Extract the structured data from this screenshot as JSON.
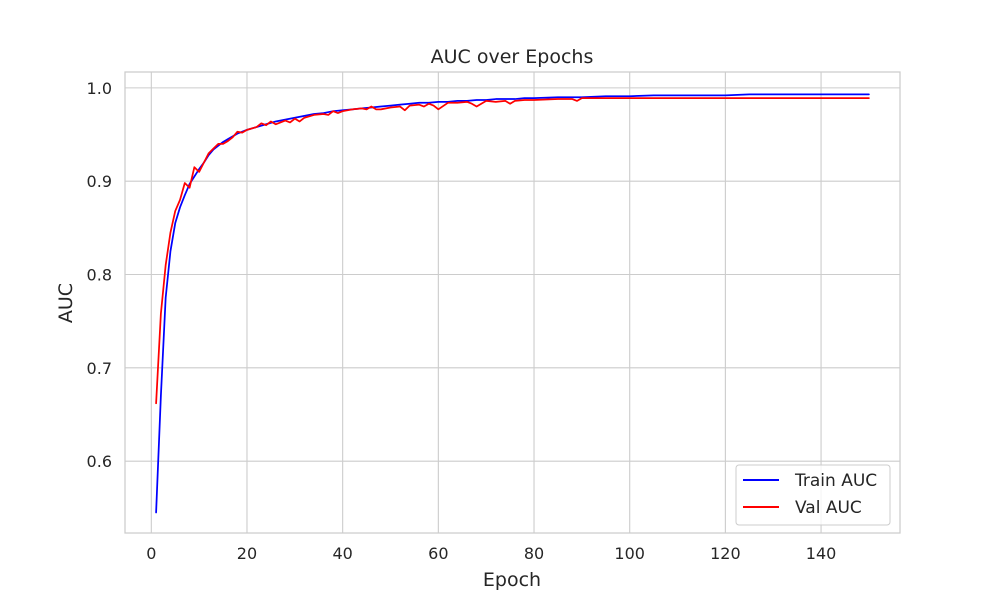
{
  "chart_data": {
    "type": "line",
    "title": "AUC over Epochs",
    "xlabel": "Epoch",
    "ylabel": "AUC",
    "xlim": [
      -5.5,
      156.5
    ],
    "ylim": [
      0.523,
      1.017
    ],
    "xticks": [
      0,
      20,
      40,
      60,
      80,
      100,
      120,
      140
    ],
    "yticks": [
      0.6,
      0.7,
      0.8,
      0.9,
      1.0
    ],
    "ytick_labels": [
      "0.6",
      "0.7",
      "0.8",
      "0.9",
      "1.0"
    ],
    "grid": true,
    "legend_position": "bottom-right",
    "series": [
      {
        "name": "Train AUC",
        "color": "#0000ff",
        "x": [
          1,
          2,
          3,
          4,
          5,
          6,
          7,
          8,
          9,
          10,
          11,
          12,
          13,
          14,
          15,
          16,
          17,
          18,
          19,
          20,
          22,
          24,
          26,
          28,
          30,
          32,
          34,
          36,
          38,
          40,
          42,
          44,
          46,
          48,
          50,
          52,
          54,
          56,
          58,
          60,
          62,
          64,
          66,
          68,
          70,
          72,
          74,
          76,
          78,
          80,
          85,
          90,
          95,
          100,
          105,
          110,
          115,
          120,
          125,
          130,
          135,
          140,
          145,
          150
        ],
        "y": [
          0.545,
          0.67,
          0.775,
          0.825,
          0.855,
          0.872,
          0.885,
          0.897,
          0.905,
          0.913,
          0.92,
          0.928,
          0.934,
          0.938,
          0.942,
          0.945,
          0.948,
          0.951,
          0.953,
          0.955,
          0.958,
          0.961,
          0.964,
          0.966,
          0.968,
          0.97,
          0.972,
          0.973,
          0.975,
          0.976,
          0.977,
          0.978,
          0.979,
          0.98,
          0.981,
          0.982,
          0.983,
          0.984,
          0.984,
          0.985,
          0.985,
          0.986,
          0.986,
          0.987,
          0.987,
          0.988,
          0.988,
          0.988,
          0.989,
          0.989,
          0.99,
          0.99,
          0.991,
          0.991,
          0.992,
          0.992,
          0.992,
          0.992,
          0.993,
          0.993,
          0.993,
          0.993,
          0.993,
          0.993
        ]
      },
      {
        "name": "Val AUC",
        "color": "#ff0000",
        "x": [
          1,
          2,
          3,
          4,
          5,
          6,
          7,
          8,
          9,
          10,
          11,
          12,
          13,
          14,
          15,
          16,
          17,
          18,
          19,
          20,
          22,
          23,
          24,
          25,
          26,
          28,
          29,
          30,
          31,
          32,
          34,
          36,
          37,
          38,
          39,
          40,
          42,
          44,
          45,
          46,
          47,
          48,
          50,
          52,
          53,
          54,
          56,
          57,
          58,
          59,
          60,
          62,
          64,
          66,
          67,
          68,
          70,
          72,
          74,
          75,
          76,
          78,
          80,
          85,
          88,
          89,
          90,
          95,
          100,
          105,
          110,
          115,
          120,
          125,
          130,
          135,
          140,
          145,
          150
        ],
        "y": [
          0.662,
          0.758,
          0.81,
          0.845,
          0.868,
          0.88,
          0.898,
          0.893,
          0.915,
          0.91,
          0.92,
          0.93,
          0.935,
          0.94,
          0.94,
          0.943,
          0.947,
          0.953,
          0.952,
          0.955,
          0.958,
          0.962,
          0.96,
          0.964,
          0.961,
          0.965,
          0.963,
          0.967,
          0.964,
          0.968,
          0.971,
          0.972,
          0.971,
          0.975,
          0.973,
          0.975,
          0.977,
          0.978,
          0.977,
          0.98,
          0.977,
          0.977,
          0.979,
          0.98,
          0.976,
          0.981,
          0.982,
          0.98,
          0.983,
          0.981,
          0.977,
          0.984,
          0.984,
          0.985,
          0.983,
          0.98,
          0.986,
          0.985,
          0.986,
          0.983,
          0.986,
          0.987,
          0.987,
          0.988,
          0.988,
          0.986,
          0.989,
          0.989,
          0.989,
          0.989,
          0.989,
          0.989,
          0.989,
          0.989,
          0.989,
          0.989,
          0.989,
          0.989,
          0.989
        ]
      }
    ]
  }
}
